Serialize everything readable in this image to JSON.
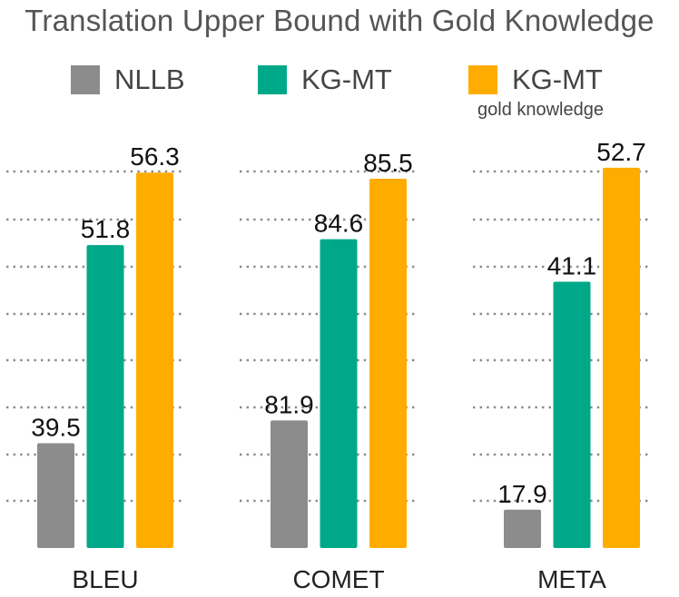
{
  "chart_data": {
    "type": "bar",
    "title": "Translation Upper Bound with Gold Knowledge",
    "categories": [
      "BLEU",
      "COMET",
      "META"
    ],
    "series": [
      {
        "name": "NLLB",
        "color": "#8c8c8c",
        "values": [
          39.5,
          81.9,
          17.9
        ]
      },
      {
        "name": "KG-MT",
        "color": "#00a88a",
        "values": [
          51.8,
          84.6,
          41.1
        ]
      },
      {
        "name": "KG-MT",
        "sublabel": "gold knowledge",
        "color": "#ffac00",
        "values": [
          56.3,
          85.5,
          52.7
        ]
      }
    ],
    "value_labels": [
      [
        "39.5",
        "51.8",
        "56.3"
      ],
      [
        "81.9",
        "84.6",
        "85.5"
      ],
      [
        "17.9",
        "41.1",
        "52.7"
      ]
    ],
    "axis_ranges": {
      "BLEU": [
        33,
        58
      ],
      "COMET": [
        80,
        86
      ],
      "META": [
        14,
        55
      ]
    },
    "grid": true,
    "grid_style": "dotted",
    "legend_placement": "top",
    "y_axis_visible": false
  }
}
